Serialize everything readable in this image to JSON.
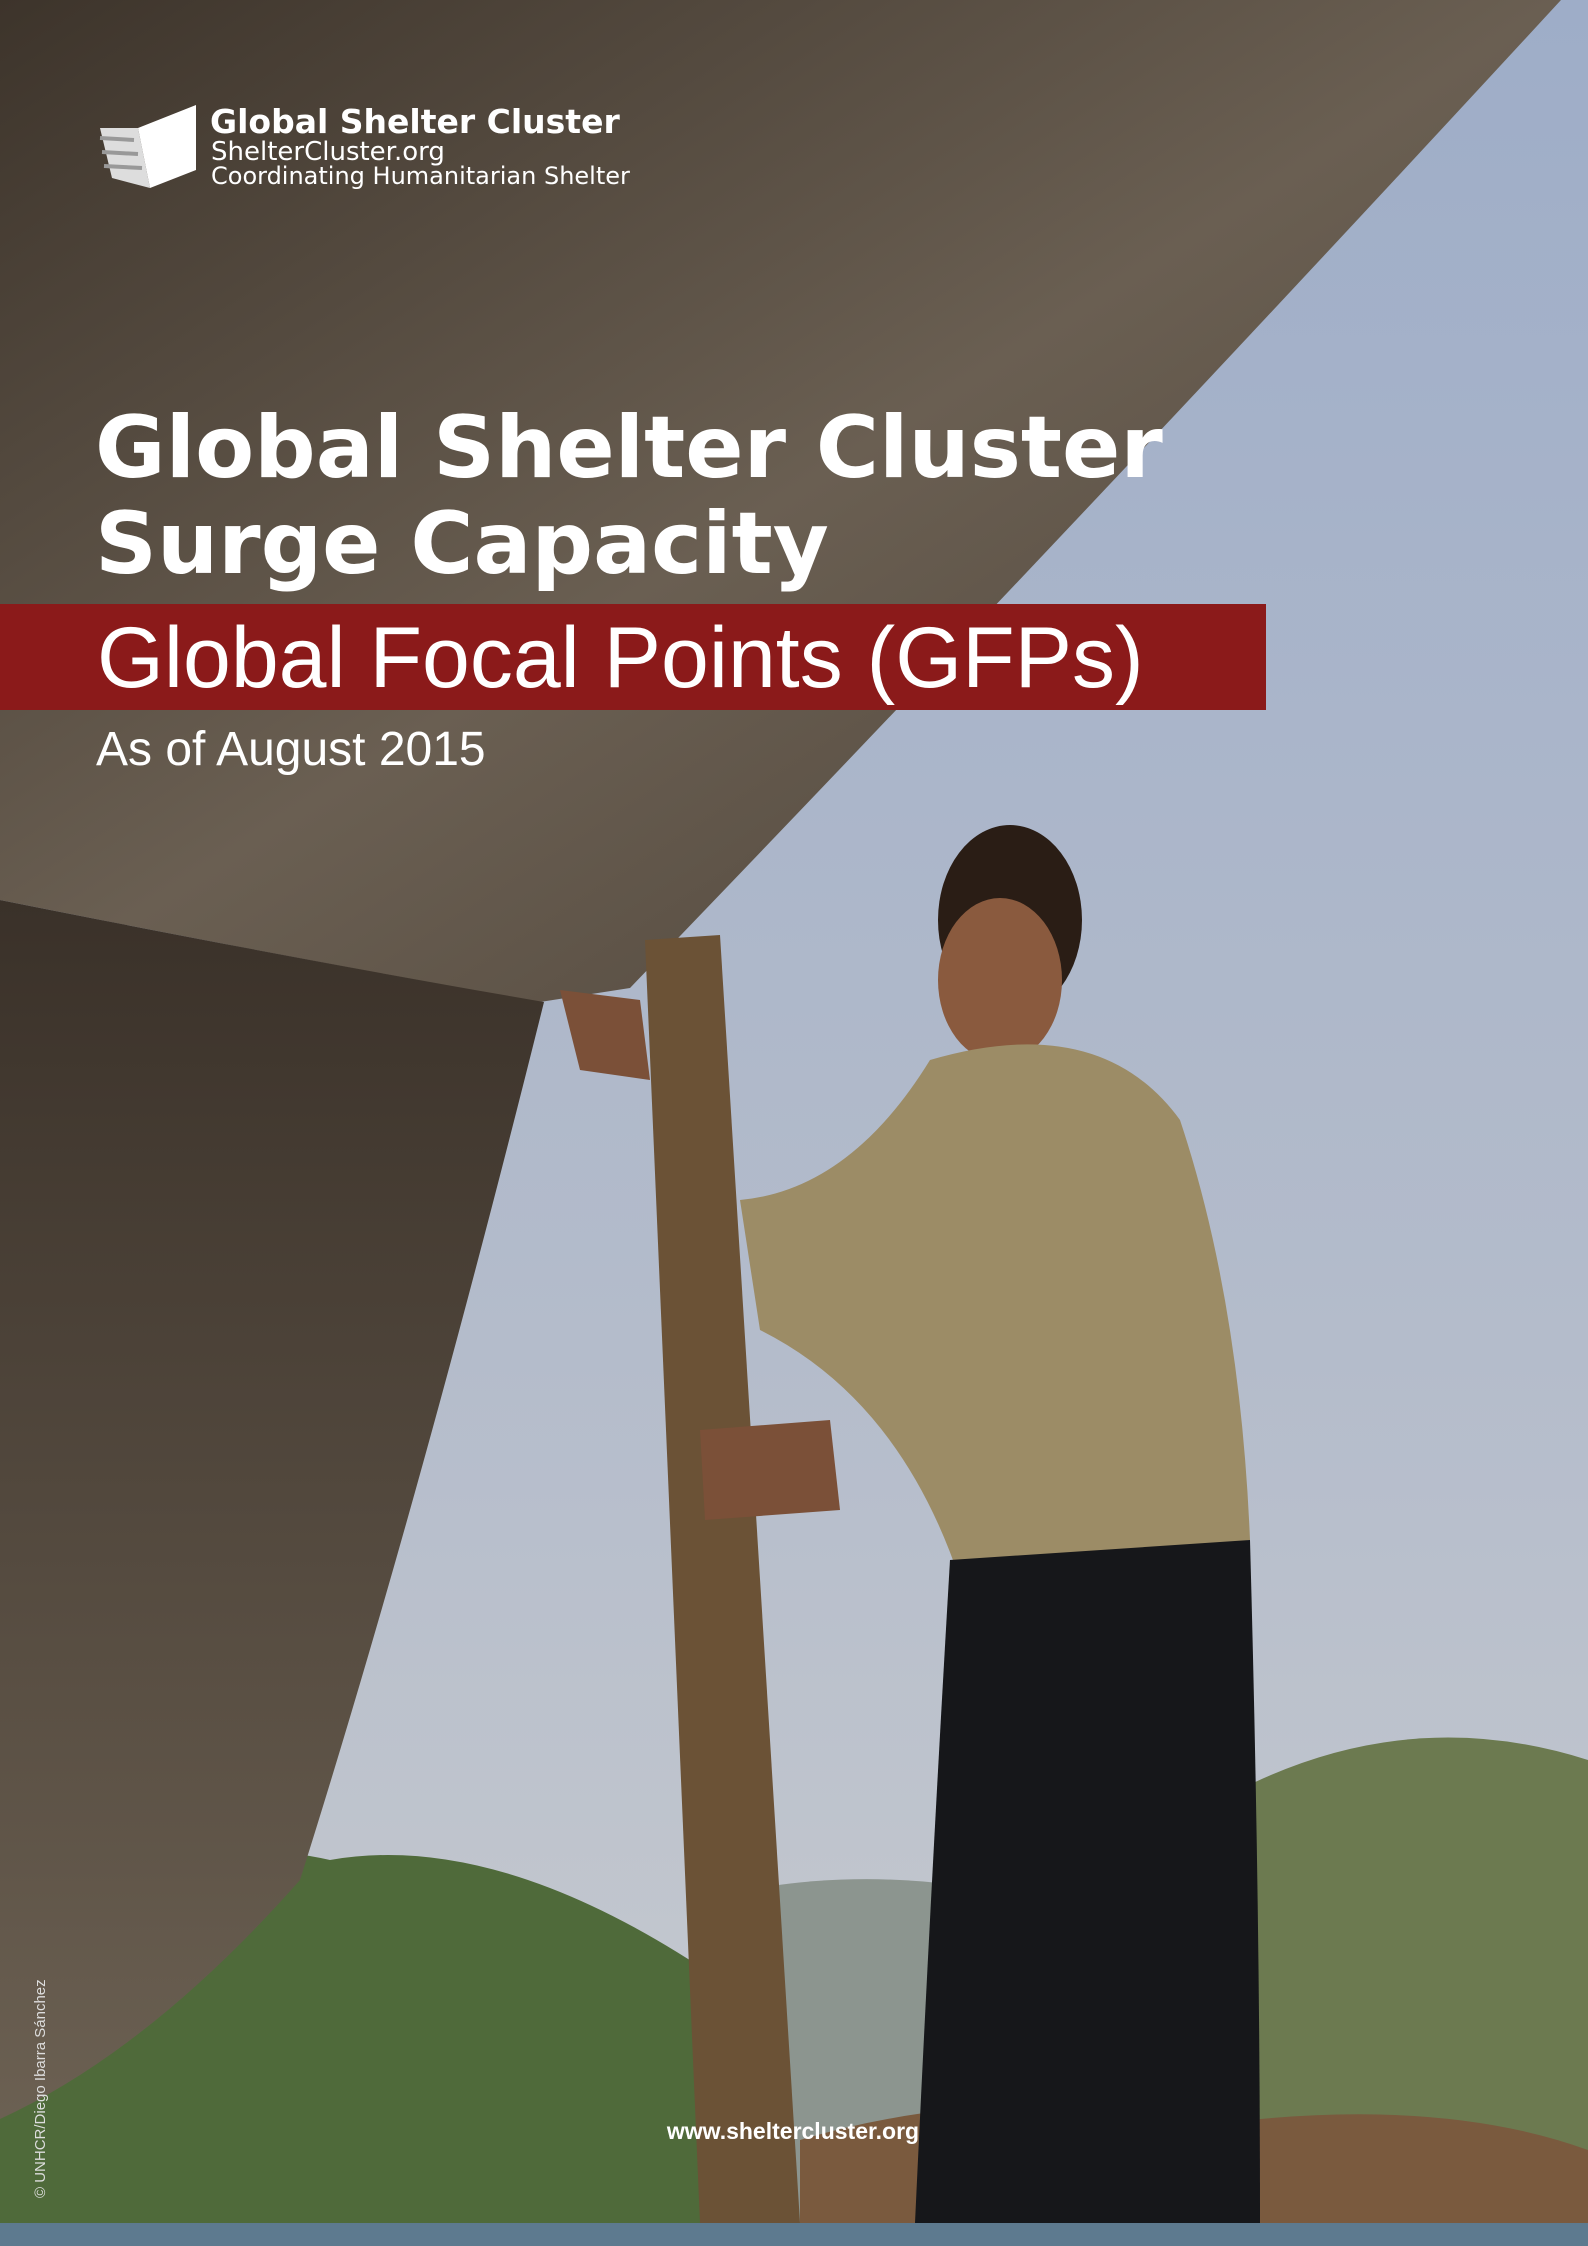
{
  "logo": {
    "name": "Global Shelter Cluster",
    "url": "ShelterCluster.org",
    "tagline": "Coordinating Humanitarian Shelter"
  },
  "title": {
    "line1": "Global Shelter Cluster",
    "line2": "Surge Capacity"
  },
  "subtitle": "Global Focal Points (GFPs)",
  "date": "As of August 2015",
  "photo_credit": "© UNHCR/Diego Ibarra Sánchez",
  "website": "www.sheltercluster.org"
}
